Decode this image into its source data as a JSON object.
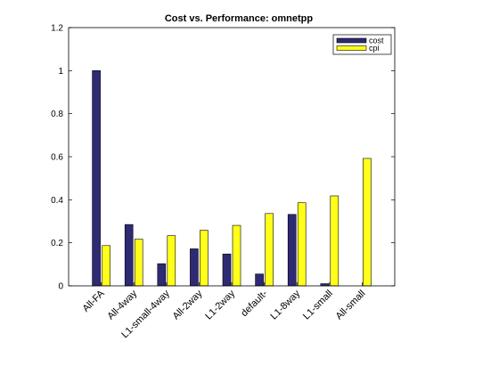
{
  "chart_data": {
    "type": "bar",
    "title": "Cost vs. Performance: omnetpp",
    "xlabel": "",
    "ylabel": "",
    "categories": [
      "All-FA",
      "All-4way",
      "L1-small-4way",
      "All-2way",
      "L1-2way",
      "default-",
      "L1-8way",
      "L1-small",
      "All-small"
    ],
    "series": [
      {
        "name": "cost",
        "color": "#2e2a73",
        "values": [
          1.0,
          0.285,
          0.103,
          0.172,
          0.148,
          0.055,
          0.332,
          0.01,
          0.0
        ]
      },
      {
        "name": "cpi",
        "color": "#ffff1a",
        "values": [
          0.187,
          0.217,
          0.233,
          0.258,
          0.281,
          0.336,
          0.386,
          0.418,
          0.592
        ]
      }
    ],
    "ylim": [
      0,
      1.2
    ],
    "yticks": [
      "0",
      "0.2",
      "0.4",
      "0.6",
      "0.8",
      "1",
      "1.2"
    ],
    "grid": false,
    "legend_position": "top-right"
  }
}
